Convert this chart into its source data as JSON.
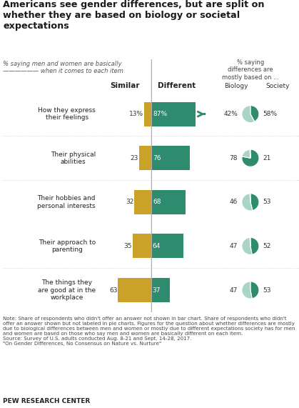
{
  "title": "Americans see gender differences, but are split on\nwhether they are based on biology or societal\nexpectations",
  "subtitle_left": "% saying men and women are basically\n—————— when it comes to each item",
  "subtitle_right": "% saying\ndifferences are\nmostly based on ...",
  "col_header_similar": "Similar",
  "col_header_different": "Different",
  "col_header_biology": "Biology",
  "col_header_society": "Society",
  "categories": [
    "How they express\ntheir feelings",
    "Their physical\nabilities",
    "Their hobbies and\npersonal interests",
    "Their approach to\nparenting",
    "The things they\nare good at in the\nworkplace"
  ],
  "similar_values": [
    13,
    23,
    32,
    35,
    63
  ],
  "different_values": [
    87,
    76,
    68,
    64,
    37
  ],
  "similar_labels": [
    "13%",
    "23",
    "32",
    "35",
    "63"
  ],
  "different_labels": [
    "87%",
    "76",
    "68",
    "64",
    "37"
  ],
  "biology_values": [
    42,
    78,
    46,
    47,
    47
  ],
  "society_values": [
    58,
    21,
    53,
    52,
    53
  ],
  "biology_labels": [
    "42%",
    "78",
    "46",
    "47",
    "47"
  ],
  "society_labels": [
    "58%",
    "21",
    "53",
    "52",
    "53"
  ],
  "bar_similar_color": "#C9A227",
  "bar_different_color": "#2E8B6E",
  "pie_biology_color": "#2E8B6E",
  "pie_society_color": "#A8D5C8",
  "background_color": "#FFFFFF",
  "right_panel_bg": "#EDEAE3",
  "note_text": "Note: Share of respondents who didn't offer an answer not shown in bar chart. Share of respondents who didn't offer an answer shown but not labeled in pie charts. Figures for the question about whether differences are mostly due to biological differences between men and women or mostly due to different expectations society has for men and women are based on those who say men and women are basically different on each item.\nSource: Survey of U.S. adults conducted Aug. 8-21 and Sept. 14-28, 2017.\n\"On Gender Differences, No Consensus on Nature vs. Nurture\"",
  "pew_label": "PEW RESEARCH CENTER"
}
